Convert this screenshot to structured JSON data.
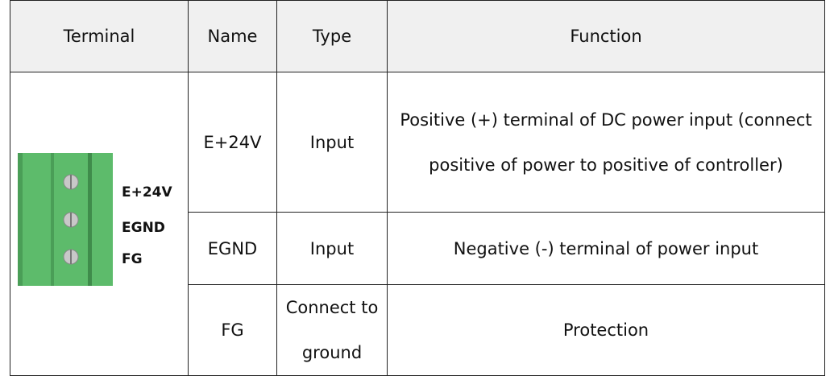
{
  "table": {
    "header": [
      "Terminal",
      "Name",
      "Type",
      "Function"
    ],
    "terminal_labels": [
      "E+24V",
      "EGND",
      "FG"
    ],
    "rows": [
      [
        "E+24V",
        "Input",
        "Positive (+) terminal of DC power input (connect positive of power to positive of controller)"
      ],
      [
        "EGND",
        "Input",
        "Negative (-) terminal of power input"
      ],
      [
        "FG",
        "Connect to ground",
        "Protection"
      ]
    ]
  }
}
